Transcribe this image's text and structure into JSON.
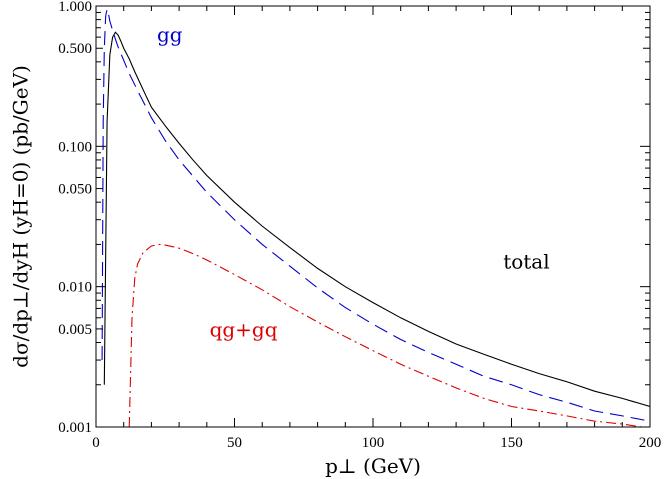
{
  "chart_data": {
    "type": "line",
    "xlabel": "p⊥ (GeV)",
    "ylabel": "dσ/dp⊥/dyH (yH=0) (pb/GeV)",
    "xlim": [
      0,
      200
    ],
    "ylim": [
      0.001,
      1.0
    ],
    "yscale": "log",
    "x_ticks": [
      0,
      50,
      100,
      150,
      200
    ],
    "y_ticks": [
      {
        "value": 0.001,
        "label": "0.001"
      },
      {
        "value": 0.005,
        "label": "0.005"
      },
      {
        "value": 0.01,
        "label": "0.010"
      },
      {
        "value": 0.05,
        "label": "0.050"
      },
      {
        "value": 0.1,
        "label": "0.100"
      },
      {
        "value": 0.5,
        "label": "0.500"
      },
      {
        "value": 1.0,
        "label": "1.000"
      }
    ],
    "grid": false,
    "legend": "none",
    "annotations": [
      {
        "text": "gg",
        "x": 22,
        "y": 0.56,
        "color": "#0000cc"
      },
      {
        "text": "total",
        "x": 147,
        "y": 0.0135,
        "color": "#000000"
      },
      {
        "text": "qg+gq",
        "x": 41,
        "y": 0.0044,
        "color": "#dd0000"
      }
    ],
    "series": [
      {
        "id": "total",
        "color": "#000000",
        "dash": "",
        "x": [
          3,
          4,
          5,
          6,
          7,
          8,
          9,
          10,
          12,
          14,
          16,
          18,
          20,
          25,
          30,
          35,
          40,
          50,
          60,
          70,
          80,
          90,
          100,
          110,
          120,
          130,
          140,
          150,
          160,
          170,
          180,
          190,
          200
        ],
        "y": [
          0.002,
          0.15,
          0.45,
          0.6,
          0.65,
          0.62,
          0.56,
          0.5,
          0.42,
          0.34,
          0.28,
          0.23,
          0.19,
          0.14,
          0.105,
          0.08,
          0.062,
          0.04,
          0.027,
          0.019,
          0.0135,
          0.01,
          0.0077,
          0.006,
          0.0048,
          0.0039,
          0.0033,
          0.0028,
          0.0024,
          0.0021,
          0.0018,
          0.0016,
          0.0014
        ]
      },
      {
        "id": "gg",
        "color": "#0000cc",
        "dash": "14,7",
        "x": [
          2.2,
          2.6,
          3,
          3.5,
          4,
          4.5,
          5,
          6,
          7,
          8,
          10,
          12,
          15,
          20,
          25,
          30,
          40,
          50,
          60,
          70,
          80,
          90,
          100,
          110,
          120,
          130,
          140,
          150,
          160,
          170,
          180,
          190,
          200
        ],
        "y": [
          0.003,
          0.15,
          0.5,
          0.85,
          0.95,
          0.88,
          0.78,
          0.67,
          0.58,
          0.51,
          0.41,
          0.33,
          0.25,
          0.16,
          0.11,
          0.08,
          0.047,
          0.03,
          0.02,
          0.014,
          0.0098,
          0.0071,
          0.0054,
          0.0042,
          0.0034,
          0.0028,
          0.0023,
          0.002,
          0.0017,
          0.0015,
          0.0013,
          0.0012,
          0.0011
        ]
      },
      {
        "id": "qg+gq",
        "color": "#dd0000",
        "dash": "10,4,2,4",
        "x": [
          12,
          13,
          14,
          15,
          17,
          20,
          23,
          25,
          30,
          35,
          40,
          50,
          60,
          70,
          80,
          90,
          100,
          110,
          120,
          130,
          140,
          150,
          160,
          170,
          180,
          190,
          197
        ],
        "y": [
          0.001,
          0.006,
          0.0115,
          0.0145,
          0.0175,
          0.0195,
          0.02,
          0.0198,
          0.0188,
          0.0172,
          0.0155,
          0.0122,
          0.0095,
          0.0072,
          0.0056,
          0.0044,
          0.0035,
          0.0028,
          0.0023,
          0.0019,
          0.0016,
          0.0014,
          0.0013,
          0.0012,
          0.0011,
          0.00105,
          0.001
        ]
      }
    ]
  }
}
